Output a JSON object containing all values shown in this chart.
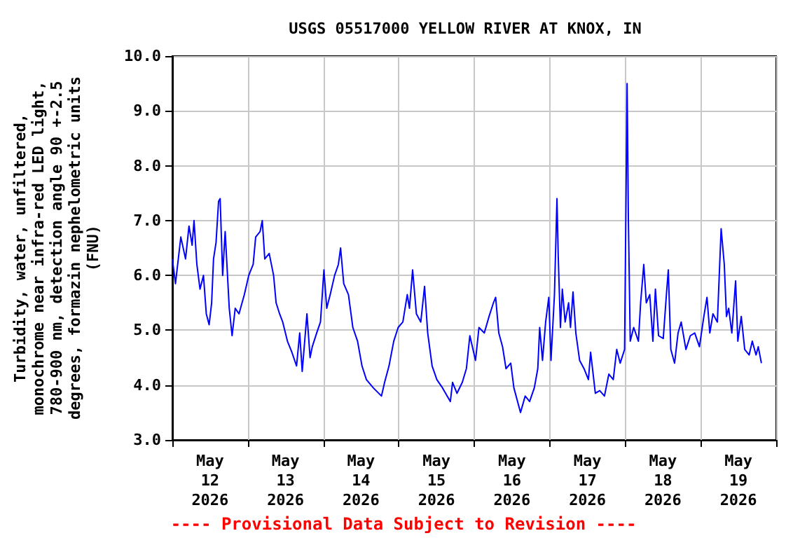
{
  "chart_data": {
    "type": "line",
    "title": "USGS 05517000 YELLOW RIVER AT KNOX, IN",
    "ylabel": "Turbidity, water, unfiltered, monochrome near infra-red LED light, 780-900 nm, detection angle 90 +-2.5 degrees, formazin nephelometric units (FNU)",
    "annotations": [
      "---- Provisional Data Subject to Revision ----"
    ],
    "x": [
      "2026-05-12T00:00",
      "2026-05-12T01:00",
      "2026-05-12T02:42",
      "2026-05-12T04:12",
      "2026-05-12T05:18",
      "2026-05-12T06:18",
      "2026-05-12T06:54",
      "2026-05-12T07:48",
      "2026-05-12T08:48",
      "2026-05-12T09:54",
      "2026-05-12T10:48",
      "2026-05-12T11:42",
      "2026-05-12T12:30",
      "2026-05-12T13:06",
      "2026-05-12T13:54",
      "2026-05-12T14:42",
      "2026-05-12T15:12",
      "2026-05-12T16:00",
      "2026-05-12T16:48",
      "2026-05-12T18:06",
      "2026-05-12T19:00",
      "2026-05-12T20:00",
      "2026-05-12T21:12",
      "2026-05-12T22:54",
      "2026-05-13T00:18",
      "2026-05-13T01:42",
      "2026-05-13T02:30",
      "2026-05-13T03:54",
      "2026-05-13T04:36",
      "2026-05-13T05:24",
      "2026-05-13T06:48",
      "2026-05-13T08:12",
      "2026-05-13T09:00",
      "2026-05-13T10:06",
      "2026-05-13T11:06",
      "2026-05-13T12:36",
      "2026-05-13T14:00",
      "2026-05-13T15:30",
      "2026-05-13T16:30",
      "2026-05-13T17:18",
      "2026-05-13T18:48",
      "2026-05-13T19:48",
      "2026-05-13T20:30",
      "2026-05-13T21:54",
      "2026-05-13T23:06",
      "2026-05-14T00:12",
      "2026-05-14T01:06",
      "2026-05-14T02:12",
      "2026-05-14T03:36",
      "2026-05-14T04:48",
      "2026-05-14T05:30",
      "2026-05-14T06:30",
      "2026-05-14T08:00",
      "2026-05-14T09:24",
      "2026-05-14T10:54",
      "2026-05-14T12:18",
      "2026-05-14T13:42",
      "2026-05-14T15:54",
      "2026-05-14T18:30",
      "2026-05-14T19:30",
      "2026-05-14T20:54",
      "2026-05-14T22:24",
      "2026-05-14T23:48",
      "2026-05-15T01:18",
      "2026-05-15T02:42",
      "2026-05-15T03:24",
      "2026-05-15T04:24",
      "2026-05-15T05:36",
      "2026-05-15T07:00",
      "2026-05-15T08:12",
      "2026-05-15T09:12",
      "2026-05-15T10:36",
      "2026-05-15T12:06",
      "2026-05-15T13:54",
      "2026-05-15T16:24",
      "2026-05-15T17:06",
      "2026-05-15T18:30",
      "2026-05-15T20:12",
      "2026-05-15T21:30",
      "2026-05-15T22:36",
      "2026-05-16T00:24",
      "2026-05-16T01:30",
      "2026-05-16T03:12",
      "2026-05-16T04:42",
      "2026-05-16T06:06",
      "2026-05-16T06:48",
      "2026-05-16T07:48",
      "2026-05-16T09:00",
      "2026-05-16T10:06",
      "2026-05-16T11:36",
      "2026-05-16T12:36",
      "2026-05-16T14:42",
      "2026-05-16T16:12",
      "2026-05-16T17:36",
      "2026-05-16T19:06",
      "2026-05-16T20:12",
      "2026-05-16T20:48",
      "2026-05-16T21:42",
      "2026-05-16T22:42",
      "2026-05-16T23:42",
      "2026-05-17T00:24",
      "2026-05-17T01:30",
      "2026-05-17T02:18",
      "2026-05-17T02:42",
      "2026-05-17T03:24",
      "2026-05-17T04:00",
      "2026-05-17T04:54",
      "2026-05-17T06:00",
      "2026-05-17T06:36",
      "2026-05-17T07:24",
      "2026-05-17T08:18",
      "2026-05-17T09:30",
      "2026-05-17T10:54",
      "2026-05-17T12:18",
      "2026-05-17T13:00",
      "2026-05-17T14:30",
      "2026-05-17T15:54",
      "2026-05-17T17:24",
      "2026-05-17T18:48",
      "2026-05-17T20:12",
      "2026-05-17T21:18",
      "2026-05-17T22:24",
      "2026-05-17T23:48",
      "2026-05-18T00:36",
      "2026-05-18T01:00",
      "2026-05-18T01:36",
      "2026-05-18T02:42",
      "2026-05-18T04:12",
      "2026-05-18T04:54",
      "2026-05-18T05:54",
      "2026-05-18T06:42",
      "2026-05-18T07:48",
      "2026-05-18T08:48",
      "2026-05-18T09:36",
      "2026-05-18T10:36",
      "2026-05-18T12:06",
      "2026-05-18T13:06",
      "2026-05-18T13:42",
      "2026-05-18T14:30",
      "2026-05-18T15:42",
      "2026-05-18T16:48",
      "2026-05-18T17:48",
      "2026-05-18T19:18",
      "2026-05-18T20:42",
      "2026-05-18T22:06",
      "2026-05-18T23:36",
      "2026-05-19T01:00",
      "2026-05-19T02:00",
      "2026-05-19T02:54",
      "2026-05-19T03:54",
      "2026-05-19T05:18",
      "2026-05-19T06:30",
      "2026-05-19T07:30",
      "2026-05-19T08:12",
      "2026-05-19T08:54",
      "2026-05-19T09:54",
      "2026-05-19T11:06",
      "2026-05-19T11:48",
      "2026-05-19T12:54",
      "2026-05-19T14:00",
      "2026-05-19T15:24",
      "2026-05-19T16:24",
      "2026-05-19T17:36",
      "2026-05-19T18:18",
      "2026-05-19T19:18"
    ],
    "series": [
      {
        "color": "#0000ff",
        "values": [
          6.3,
          5.85,
          6.7,
          6.3,
          6.9,
          6.55,
          7.0,
          6.2,
          5.75,
          6.0,
          5.3,
          5.1,
          5.5,
          6.3,
          6.6,
          7.35,
          7.4,
          6.0,
          6.8,
          5.4,
          4.9,
          5.4,
          5.3,
          5.65,
          6.0,
          6.2,
          6.7,
          6.8,
          7.0,
          6.3,
          6.4,
          6.0,
          5.5,
          5.3,
          5.15,
          4.8,
          4.6,
          4.35,
          4.95,
          4.25,
          5.3,
          4.5,
          4.7,
          4.95,
          5.15,
          6.1,
          5.4,
          5.65,
          6.0,
          6.2,
          6.5,
          5.85,
          5.65,
          5.05,
          4.8,
          4.35,
          4.1,
          3.95,
          3.8,
          4.05,
          4.35,
          4.8,
          5.05,
          5.15,
          5.65,
          5.4,
          6.1,
          5.3,
          5.15,
          5.8,
          4.95,
          4.35,
          4.1,
          3.95,
          3.7,
          4.05,
          3.85,
          4.05,
          4.3,
          4.9,
          4.45,
          5.05,
          4.95,
          5.25,
          5.5,
          5.6,
          4.95,
          4.7,
          4.3,
          4.4,
          3.95,
          3.5,
          3.8,
          3.7,
          3.95,
          4.3,
          5.05,
          4.45,
          5.15,
          5.6,
          4.45,
          5.65,
          7.4,
          6.35,
          5.05,
          5.75,
          5.15,
          5.5,
          5.05,
          5.7,
          4.95,
          4.45,
          4.3,
          4.1,
          4.6,
          3.85,
          3.9,
          3.8,
          4.2,
          4.1,
          4.65,
          4.4,
          4.65,
          9.5,
          7.05,
          4.8,
          5.05,
          4.8,
          5.5,
          6.2,
          5.5,
          5.65,
          4.8,
          5.75,
          4.9,
          4.85,
          5.65,
          6.1,
          4.65,
          4.4,
          4.95,
          5.15,
          4.65,
          4.9,
          4.95,
          4.7,
          5.25,
          5.6,
          4.95,
          5.3,
          5.15,
          6.85,
          6.2,
          5.25,
          5.4,
          4.95,
          5.9,
          4.8,
          5.25,
          4.65,
          4.55,
          4.8,
          4.55,
          4.7,
          4.4
        ]
      }
    ],
    "xlim": [
      "2026-05-12T00:00",
      "2026-05-20T00:00"
    ],
    "xticks": [
      {
        "value": "2026-05-12T00:00",
        "label": null
      },
      {
        "value": "2026-05-12T12:00",
        "label": "May 12 2026"
      },
      {
        "value": "2026-05-13T00:00",
        "label": null
      },
      {
        "value": "2026-05-13T12:00",
        "label": "May 13 2026"
      },
      {
        "value": "2026-05-14T00:00",
        "label": null
      },
      {
        "value": "2026-05-14T12:00",
        "label": "May 14 2026"
      },
      {
        "value": "2026-05-15T00:00",
        "label": null
      },
      {
        "value": "2026-05-15T12:00",
        "label": "May 15 2026"
      },
      {
        "value": "2026-05-16T00:00",
        "label": null
      },
      {
        "value": "2026-05-16T12:00",
        "label": "May 16 2026"
      },
      {
        "value": "2026-05-17T00:00",
        "label": null
      },
      {
        "value": "2026-05-17T12:00",
        "label": "May 17 2026"
      },
      {
        "value": "2026-05-18T00:00",
        "label": null
      },
      {
        "value": "2026-05-18T12:00",
        "label": "May 18 2026"
      },
      {
        "value": "2026-05-19T00:00",
        "label": null
      },
      {
        "value": "2026-05-19T12:00",
        "label": "May 19 2026"
      },
      {
        "value": "2026-05-20T00:00",
        "label": null
      }
    ],
    "ylim": [
      3,
      10
    ],
    "yticks": [
      {
        "value": 3,
        "label": "3.0"
      },
      {
        "value": 4,
        "label": "4.0"
      },
      {
        "value": 5,
        "label": "5.0"
      },
      {
        "value": 6,
        "label": "6.0"
      },
      {
        "value": 7,
        "label": "7.0"
      },
      {
        "value": 8,
        "label": "8.0"
      },
      {
        "value": 9,
        "label": "9.0"
      },
      {
        "value": 10,
        "label": "10.0"
      }
    ],
    "grid": true,
    "marker": "none",
    "line_style": "solid"
  }
}
